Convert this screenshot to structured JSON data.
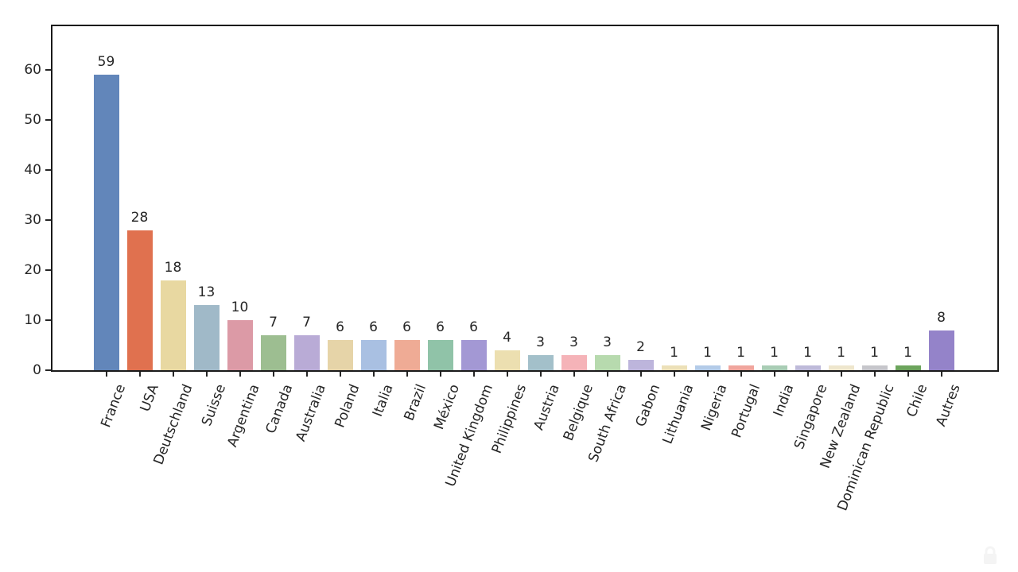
{
  "chart_data": {
    "type": "bar",
    "title": "",
    "xlabel": "",
    "ylabel": "",
    "categories": [
      "France",
      "USA",
      "Deutschland",
      "Suisse",
      "Argentina",
      "Canada",
      "Australia",
      "Poland",
      "Italia",
      "Brazil",
      "México",
      "United Kingdom",
      "Philippines",
      "Austria",
      "Belgique",
      "South Africa",
      "Gabon",
      "Lithuania",
      "Nigeria",
      "Portugal",
      "India",
      "Singapore",
      "New Zealand",
      "Dominican Republic",
      "Chile",
      "Autres"
    ],
    "values": [
      59,
      28,
      18,
      13,
      10,
      7,
      7,
      6,
      6,
      6,
      6,
      6,
      4,
      3,
      3,
      3,
      2,
      1,
      1,
      1,
      1,
      1,
      1,
      1,
      1,
      8
    ],
    "bar_colors": [
      "#6286ba",
      "#e0714f",
      "#e8d8a1",
      "#a0b9c8",
      "#dc9aa6",
      "#9dbe91",
      "#b9abd6",
      "#e6d4a8",
      "#a9c0e2",
      "#efab95",
      "#90c3a8",
      "#a398d4",
      "#ecdfb0",
      "#a3c0ca",
      "#f5b3b8",
      "#b7daae",
      "#bdb5dc",
      "#ece0b8",
      "#b3cbe8",
      "#f0a59d",
      "#a9cdb5",
      "#bebad9",
      "#eee6cd",
      "#c6c6cb",
      "#6ca45c",
      "#9483c9"
    ],
    "yticks": [
      0,
      10,
      20,
      30,
      40,
      50,
      60
    ],
    "ylim": [
      0,
      68.7
    ],
    "grid": false,
    "legend": false,
    "x_label_rotation_deg": 69,
    "axis_color": "#1a1a1a",
    "text_color": "#262626",
    "background": "#ffffff"
  },
  "watermark": {
    "name": "faint-lock-watermark",
    "color": "#ececec"
  }
}
